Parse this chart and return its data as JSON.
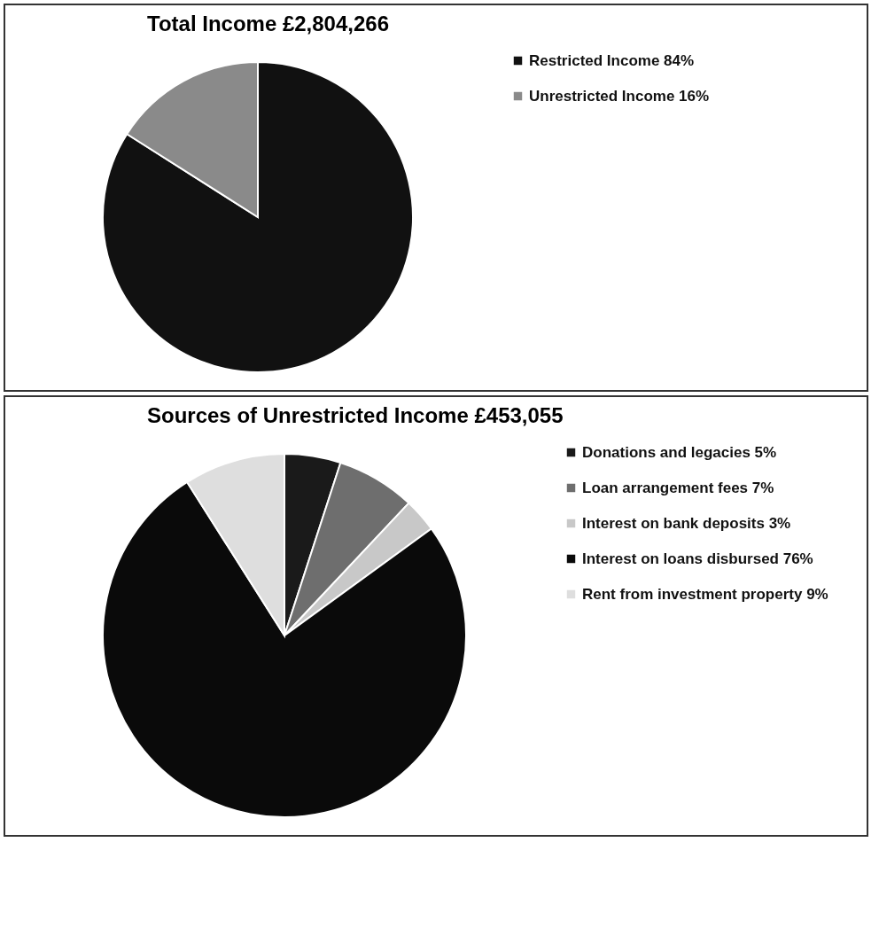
{
  "chart_data": [
    {
      "type": "pie",
      "title": "Total Income £2,804,266",
      "categories": [
        "Restricted Income 84%",
        "Unrestricted Income 16%"
      ],
      "values": [
        84,
        16
      ],
      "colors": [
        "#111111",
        "#8a8a8a"
      ],
      "legend": "right"
    },
    {
      "type": "pie",
      "title": "Sources of Unrestricted Income £453,055",
      "categories": [
        "Donations and legacies 5%",
        "Loan arrangement fees 7%",
        "Interest on bank deposits 3%",
        "Interest on loans disbursed 76%",
        "Rent from investment property 9%"
      ],
      "values": [
        5,
        7,
        3,
        76,
        9
      ],
      "colors": [
        "#1a1a1a",
        "#6e6e6e",
        "#c8c8c8",
        "#0a0a0a",
        "#dedede"
      ],
      "legend": "right"
    }
  ]
}
